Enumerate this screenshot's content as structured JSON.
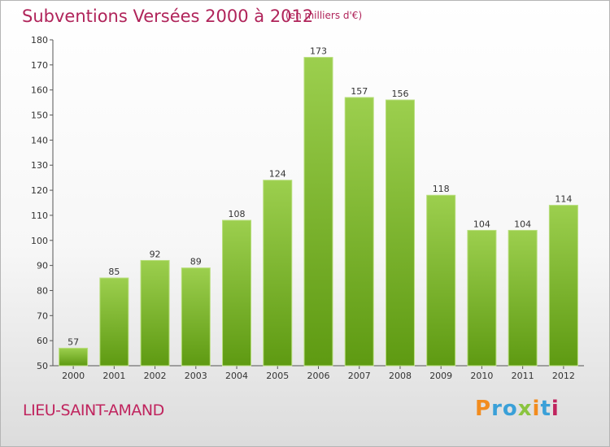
{
  "header": {
    "title": "Subventions Versées 2000 à 2012",
    "subtitle": "(en milliers d'€)"
  },
  "footer": {
    "commune": "LIEU-SAINT-AMAND",
    "logo": "Proxiti"
  },
  "colors": {
    "bar_top": "#9ccf4e",
    "bar_bottom": "#5e9a12",
    "title": "#b0245a",
    "logo_letters": [
      "#f28c1e",
      "#3aa0d8",
      "#3aa0d8",
      "#8ac43f",
      "#f28c1e",
      "#3aa0d8",
      "#c0245e"
    ]
  },
  "chart_data": {
    "type": "bar",
    "title": "Subventions Versées 2000 à 2012",
    "subtitle": "(en milliers d'€)",
    "categories": [
      "2000",
      "2001",
      "2002",
      "2003",
      "2004",
      "2005",
      "2006",
      "2007",
      "2008",
      "2009",
      "2010",
      "2011",
      "2012"
    ],
    "values": [
      57,
      85,
      92,
      89,
      108,
      124,
      173,
      157,
      156,
      118,
      104,
      104,
      114
    ],
    "data_labels": [
      "57",
      "85",
      "92",
      "89",
      "108",
      "124",
      "173",
      "157",
      "156",
      "118",
      "104",
      "104",
      "114"
    ],
    "ylim": [
      50,
      180
    ],
    "yticks": [
      "50",
      "60",
      "70",
      "80",
      "90",
      "100",
      "110",
      "120",
      "130",
      "140",
      "150",
      "160",
      "170",
      "180"
    ],
    "grid": false,
    "legend": "none"
  }
}
